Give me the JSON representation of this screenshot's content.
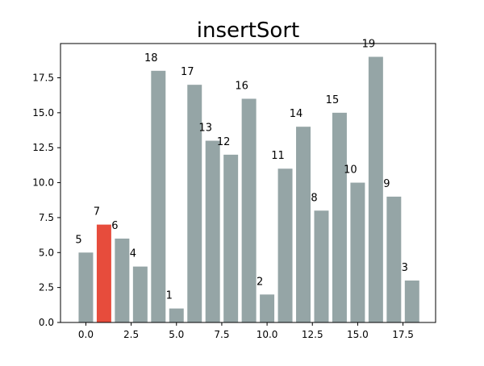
{
  "chart_data": {
    "type": "bar",
    "title": "insertSort",
    "xlabel": "",
    "ylabel": "",
    "x": [
      0,
      1,
      2,
      3,
      4,
      5,
      6,
      7,
      8,
      9,
      10,
      11,
      12,
      13,
      14,
      15,
      16,
      17,
      18
    ],
    "values": [
      5,
      7,
      6,
      4,
      18,
      1,
      17,
      13,
      12,
      16,
      2,
      11,
      14,
      8,
      15,
      10,
      19,
      9,
      3
    ],
    "data_labels": [
      "5",
      "7",
      "6",
      "4",
      "18",
      "1",
      "17",
      "13",
      "12",
      "16",
      "2",
      "11",
      "14",
      "8",
      "15",
      "10",
      "19",
      "9",
      "3"
    ],
    "highlight_index": 1,
    "xlim": [
      -1.4,
      19.3
    ],
    "ylim": [
      0,
      19.95
    ],
    "x_ticks": [
      0,
      2.5,
      5,
      7.5,
      10,
      12.5,
      15,
      17.5
    ],
    "x_tick_labels": [
      "0.0",
      "2.5",
      "5.0",
      "7.5",
      "10.0",
      "12.5",
      "15.0",
      "17.5"
    ],
    "y_ticks": [
      0,
      2.5,
      5,
      7.5,
      10,
      12.5,
      15,
      17.5
    ],
    "y_tick_labels": [
      "0.0",
      "2.5",
      "5.0",
      "7.5",
      "10.0",
      "12.5",
      "15.0",
      "17.5"
    ],
    "grid": false,
    "colors": {
      "bar": "#95a5a6",
      "highlight": "#e74c3c",
      "axes": "#000000",
      "text": "#000000"
    }
  }
}
